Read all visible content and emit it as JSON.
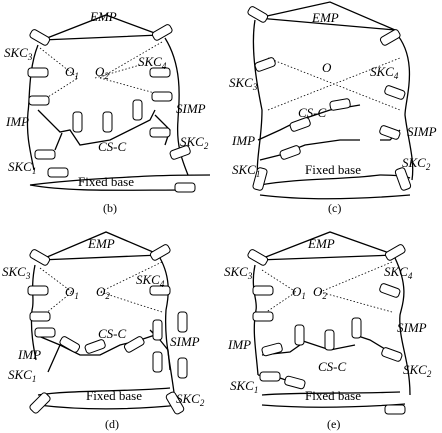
{
  "figure": {
    "panels": [
      {
        "id": "b",
        "caption": "(b)",
        "labels": {
          "top": "EMP",
          "left_upper": "SKC3",
          "right_upper": "SKC4",
          "center_a": "O1",
          "center_b": "O2",
          "left_mid": "IMP",
          "right_mid": "SIMP",
          "center": "CS-C",
          "right_lower": "SKC2",
          "left_lower": "SKC1",
          "bottom": "Fixed base"
        }
      },
      {
        "id": "c",
        "caption": "(c)",
        "labels": {
          "top": "EMP",
          "left_upper": "SKC3",
          "right_upper": "SKC4",
          "center_a": "O",
          "left_mid": "IMP",
          "right_mid": "SIMP",
          "center": "CS-C",
          "right_lower": "SKC2",
          "left_lower": "SKC1",
          "bottom": "Fixed base"
        }
      },
      {
        "id": "d",
        "caption": "(d)",
        "labels": {
          "top": "EMP",
          "left_upper": "SKC3",
          "right_upper": "SKC4",
          "center_a": "O1",
          "center_b": "O2",
          "left_mid": "IMP",
          "right_mid": "SIMP",
          "center": "CS-C",
          "right_lower": "SKC2",
          "left_lower": "SKC1",
          "bottom": "Fixed base"
        }
      },
      {
        "id": "e",
        "caption": "(e)",
        "labels": {
          "top": "EMP",
          "left_upper": "SKC3",
          "right_upper": "SKC4",
          "center_a": "O1",
          "center_b": "O2",
          "left_mid": "IMP",
          "right_mid": "SIMP",
          "center": "CS-C",
          "right_lower": "SKC2",
          "left_lower": "SKC1",
          "bottom": "Fixed base"
        }
      }
    ]
  }
}
